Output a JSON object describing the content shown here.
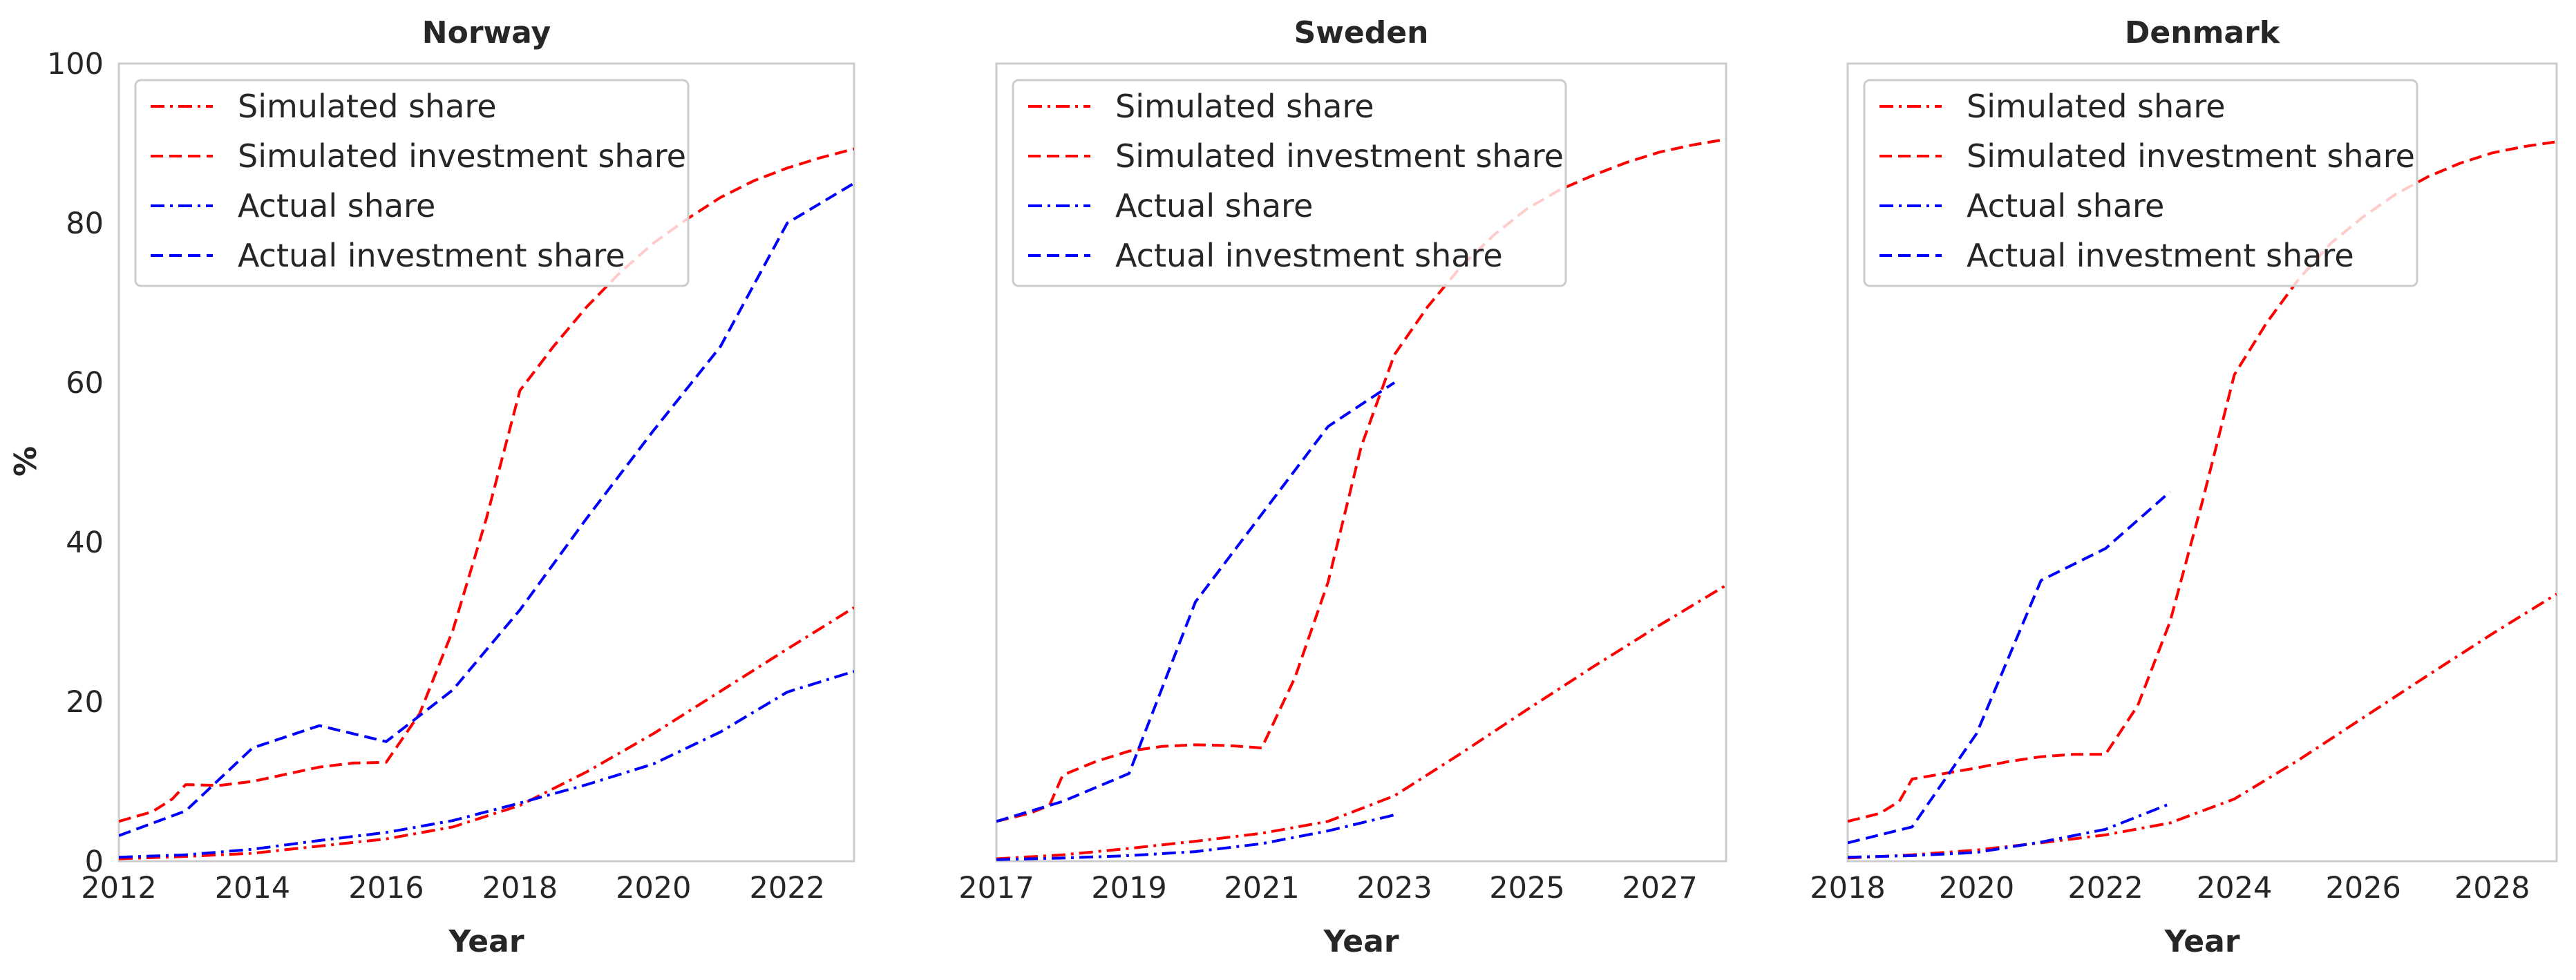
{
  "figure": {
    "ylabel": "%",
    "colors": {
      "simulated": "#ff0000",
      "actual": "#0000ff",
      "frame": "#cccccc",
      "legend_border": "#cccccc"
    }
  },
  "chart_data": [
    {
      "type": "line",
      "title": "Norway",
      "xlabel": "Year",
      "ylabel": "%",
      "xlim": [
        2012,
        2023
      ],
      "ylim": [
        0,
        100
      ],
      "xticks": [
        2012,
        2014,
        2016,
        2018,
        2020,
        2022
      ],
      "yticks": [
        0,
        20,
        40,
        60,
        80,
        100
      ],
      "grid": false,
      "legend": "top-left",
      "series": [
        {
          "name": "Simulated share",
          "style": "dashdot",
          "color": "#ff0000",
          "x": [
            2012,
            2013,
            2014,
            2015,
            2016,
            2017,
            2018,
            2019,
            2020,
            2021,
            2022,
            2023
          ],
          "y": [
            0.3,
            0.6,
            1.0,
            1.9,
            2.8,
            4.3,
            7.0,
            11.2,
            16.0,
            21.3,
            26.6,
            31.8
          ]
        },
        {
          "name": "Simulated investment share",
          "style": "dashed",
          "color": "#ff0000",
          "x": [
            2012,
            2012.5,
            2012.8,
            2013,
            2013.5,
            2014,
            2014.5,
            2015,
            2015.5,
            2016,
            2016.5,
            2017,
            2017.5,
            2018,
            2018.5,
            2019,
            2019.5,
            2020,
            2020.5,
            2021,
            2021.5,
            2022,
            2022.5,
            2023
          ],
          "y": [
            5.0,
            6.2,
            7.8,
            9.6,
            9.5,
            10.0,
            10.9,
            11.8,
            12.3,
            12.4,
            18.5,
            29.0,
            43.0,
            59.0,
            64.5,
            69.5,
            73.8,
            77.5,
            80.5,
            83.2,
            85.3,
            86.9,
            88.2,
            89.3
          ]
        },
        {
          "name": "Actual share",
          "style": "dashdot",
          "color": "#0000ff",
          "x": [
            2012,
            2013,
            2014,
            2015,
            2016,
            2017,
            2018,
            2019,
            2020,
            2021,
            2022,
            2023
          ],
          "y": [
            0.5,
            0.8,
            1.5,
            2.6,
            3.6,
            5.1,
            7.3,
            9.6,
            12.2,
            16.2,
            21.2,
            23.8
          ]
        },
        {
          "name": "Actual investment share",
          "style": "dashed",
          "color": "#0000ff",
          "x": [
            2012,
            2013,
            2014,
            2015,
            2016,
            2017,
            2018,
            2019,
            2020,
            2021,
            2022,
            2023
          ],
          "y": [
            3.2,
            6.3,
            14.2,
            17.0,
            15.0,
            21.5,
            31.5,
            43.0,
            54.0,
            64.5,
            80.0,
            85.0
          ]
        }
      ]
    },
    {
      "type": "line",
      "title": "Sweden",
      "xlabel": "Year",
      "ylabel": "",
      "xlim": [
        2017,
        2028
      ],
      "ylim": [
        0,
        100
      ],
      "xticks": [
        2017,
        2019,
        2021,
        2023,
        2025,
        2027
      ],
      "yticks": [],
      "grid": false,
      "legend": "top-left",
      "series": [
        {
          "name": "Simulated share",
          "style": "dashdot",
          "color": "#ff0000",
          "x": [
            2017,
            2018,
            2019,
            2020,
            2021,
            2022,
            2023,
            2024,
            2025,
            2026,
            2027,
            2028
          ],
          "y": [
            0.3,
            0.8,
            1.6,
            2.5,
            3.5,
            5.0,
            8.2,
            13.5,
            19.0,
            24.4,
            29.6,
            34.6
          ]
        },
        {
          "name": "Simulated investment share",
          "style": "dashed",
          "color": "#ff0000",
          "x": [
            2017,
            2017.5,
            2017.8,
            2018,
            2018.5,
            2019,
            2019.5,
            2020,
            2020.5,
            2021,
            2021.5,
            2022,
            2022.5,
            2023,
            2023.5,
            2024,
            2024.5,
            2025,
            2025.5,
            2026,
            2026.5,
            2027,
            2027.5,
            2028
          ],
          "y": [
            5.0,
            6.0,
            7.0,
            10.8,
            12.5,
            13.8,
            14.4,
            14.6,
            14.5,
            14.2,
            23.0,
            35.0,
            52.0,
            63.5,
            69.5,
            74.5,
            78.5,
            81.8,
            84.2,
            86.0,
            87.6,
            88.9,
            89.8,
            90.5
          ]
        },
        {
          "name": "Actual share",
          "style": "dashdot",
          "color": "#0000ff",
          "x": [
            2017,
            2018,
            2019,
            2020,
            2021,
            2022,
            2023
          ],
          "y": [
            0.2,
            0.4,
            0.7,
            1.2,
            2.2,
            3.8,
            5.8
          ]
        },
        {
          "name": "Actual investment share",
          "style": "dashed",
          "color": "#0000ff",
          "x": [
            2017,
            2018,
            2019,
            2020,
            2021,
            2022,
            2023
          ],
          "y": [
            5.0,
            7.5,
            11.0,
            32.5,
            43.5,
            54.5,
            60.0
          ]
        }
      ]
    },
    {
      "type": "line",
      "title": "Denmark",
      "xlabel": "Year",
      "ylabel": "",
      "xlim": [
        2018,
        2029
      ],
      "ylim": [
        0,
        100
      ],
      "xticks": [
        2018,
        2020,
        2022,
        2024,
        2026,
        2028
      ],
      "yticks": [],
      "grid": false,
      "legend": "top-left",
      "series": [
        {
          "name": "Simulated share",
          "style": "dashdot",
          "color": "#ff0000",
          "x": [
            2018,
            2019,
            2020,
            2021,
            2022,
            2023,
            2024,
            2025,
            2026,
            2027,
            2028,
            2029
          ],
          "y": [
            0.4,
            0.8,
            1.4,
            2.3,
            3.3,
            4.8,
            7.8,
            12.7,
            18.0,
            23.3,
            28.5,
            33.5
          ]
        },
        {
          "name": "Simulated investment share",
          "style": "dashed",
          "color": "#ff0000",
          "x": [
            2018,
            2018.5,
            2018.8,
            2019,
            2019.5,
            2020,
            2020.5,
            2021,
            2021.5,
            2022,
            2022.5,
            2023,
            2023.5,
            2024,
            2024.5,
            2025,
            2025.5,
            2026,
            2026.5,
            2027,
            2027.5,
            2028,
            2028.5,
            2029
          ],
          "y": [
            5.0,
            6.0,
            7.5,
            10.3,
            11.0,
            11.7,
            12.5,
            13.1,
            13.4,
            13.4,
            19.5,
            30.0,
            45.0,
            61.0,
            67.5,
            73.0,
            77.5,
            80.8,
            83.6,
            85.8,
            87.5,
            88.8,
            89.6,
            90.2
          ]
        },
        {
          "name": "Actual share",
          "style": "dashdot",
          "color": "#0000ff",
          "x": [
            2018,
            2019,
            2020,
            2021,
            2022,
            2023
          ],
          "y": [
            0.5,
            0.7,
            1.1,
            2.4,
            4.0,
            7.2
          ]
        },
        {
          "name": "Actual investment share",
          "style": "dashed",
          "color": "#0000ff",
          "x": [
            2018,
            2019,
            2020,
            2021,
            2022,
            2023
          ],
          "y": [
            2.3,
            4.3,
            16.0,
            35.2,
            39.2,
            46.3
          ]
        }
      ]
    }
  ]
}
